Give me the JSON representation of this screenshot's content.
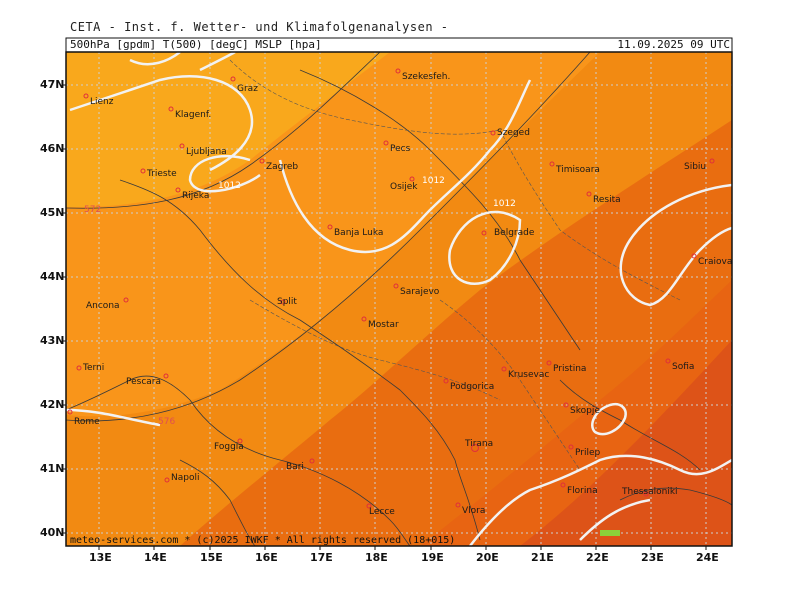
{
  "header": {
    "title": "CETA - Inst. f. Wetter- und Klimafolgenanalysen -",
    "params": "500hPa [gpdm] T(500) [degC] MSLP [hpa]",
    "timestamp": "11.09.2025 09 UTC"
  },
  "footer": "meteo-services.com * (c)2025 IWKF * All rights reserved (18+015)",
  "axes": {
    "lat_labels": [
      "47N",
      "46N",
      "45N",
      "44N",
      "43N",
      "42N",
      "41N",
      "40N"
    ],
    "lon_labels": [
      "13E",
      "14E",
      "15E",
      "16E",
      "17E",
      "18E",
      "19E",
      "20E",
      "21E",
      "22E",
      "23E",
      "24E"
    ]
  },
  "colors": {
    "light_orange": "#f9a51a",
    "mid_orange": "#f28a12",
    "dark_orange": "#e96d10",
    "red_orange": "#dd5318",
    "isobar": "#f2f2f2",
    "contour": "#3a3a3a",
    "city_marker": "#e0303a"
  },
  "cities": [
    {
      "name": "Lienz"
    },
    {
      "name": "Graz"
    },
    {
      "name": "Szekesfeh."
    },
    {
      "name": "Klagenf."
    },
    {
      "name": "Ljubljana"
    },
    {
      "name": "Zagreb"
    },
    {
      "name": "Trieste"
    },
    {
      "name": "Rijeka"
    },
    {
      "name": "Pecs"
    },
    {
      "name": "Szeged"
    },
    {
      "name": "Osijek"
    },
    {
      "name": "Timisoara"
    },
    {
      "name": "Resita"
    },
    {
      "name": "Sibiu"
    },
    {
      "name": "Banja Luka"
    },
    {
      "name": "Belgrade"
    },
    {
      "name": "Craiova"
    },
    {
      "name": "Sarajevo"
    },
    {
      "name": "Split"
    },
    {
      "name": "Ancona"
    },
    {
      "name": "Mostar"
    },
    {
      "name": "Terni"
    },
    {
      "name": "Pescara"
    },
    {
      "name": "Podgorica"
    },
    {
      "name": "Krusevac"
    },
    {
      "name": "Pristina"
    },
    {
      "name": "Sofia"
    },
    {
      "name": "Rome"
    },
    {
      "name": "Skopje"
    },
    {
      "name": "Foggia"
    },
    {
      "name": "Tirana"
    },
    {
      "name": "Prilep"
    },
    {
      "name": "Bari"
    },
    {
      "name": "Napoli"
    },
    {
      "name": "Florina"
    },
    {
      "name": "Thessaloniki"
    },
    {
      "name": "Lecce"
    },
    {
      "name": "Vlora"
    }
  ],
  "isobar_labels": [
    "1012",
    "1012",
    "1012"
  ],
  "contour_labels": [
    "572",
    "576"
  ]
}
